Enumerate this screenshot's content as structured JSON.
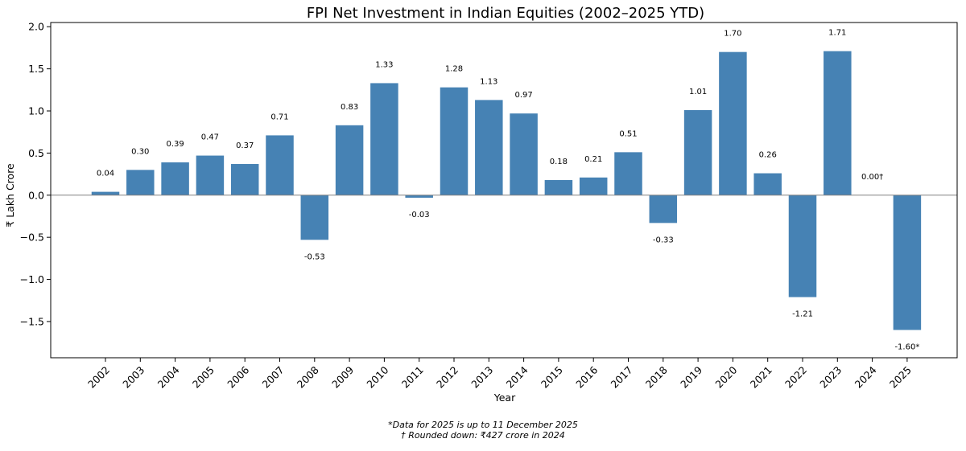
{
  "chart_data": {
    "type": "bar",
    "title": "FPI Net Investment in Indian Equities (2002–2025 YTD)",
    "xlabel": "Year",
    "ylabel": "₹ Lakh Crore",
    "ylim": [
      -1.93,
      2.05
    ],
    "yticks": [
      -1.5,
      -1.0,
      -0.5,
      0.0,
      0.5,
      1.0,
      1.5,
      2.0
    ],
    "ytick_labels": [
      "−1.5",
      "−1.0",
      "−0.5",
      "0.0",
      "0.5",
      "1.0",
      "1.5",
      "2.0"
    ],
    "categories": [
      "2002",
      "2003",
      "2004",
      "2005",
      "2006",
      "2007",
      "2008",
      "2009",
      "2010",
      "2011",
      "2012",
      "2013",
      "2014",
      "2015",
      "2016",
      "2017",
      "2018",
      "2019",
      "2020",
      "2021",
      "2022",
      "2023",
      "2024",
      "2025"
    ],
    "values": [
      0.04,
      0.3,
      0.39,
      0.47,
      0.37,
      0.71,
      -0.53,
      0.83,
      1.33,
      -0.03,
      1.28,
      1.13,
      0.97,
      0.18,
      0.21,
      0.51,
      -0.33,
      1.01,
      1.7,
      0.26,
      -1.21,
      1.71,
      0.0,
      -1.6
    ],
    "data_labels": [
      "0.04",
      "0.30",
      "0.39",
      "0.47",
      "0.37",
      "0.71",
      "-0.53",
      "0.83",
      "1.33",
      "-0.03",
      "1.28",
      "1.13",
      "0.97",
      "0.18",
      "0.21",
      "0.51",
      "-0.33",
      "1.01",
      "1.70",
      "0.26",
      "-1.21",
      "1.71",
      "0.00†",
      "-1.60*"
    ],
    "bar_color": "#4682b4",
    "zero_line_color": "#808080",
    "grid": false
  },
  "footnotes": {
    "line1": "*Data for 2025 is up to 11 December 2025",
    "line2": "† Rounded down: ₹427 crore in 2024"
  }
}
